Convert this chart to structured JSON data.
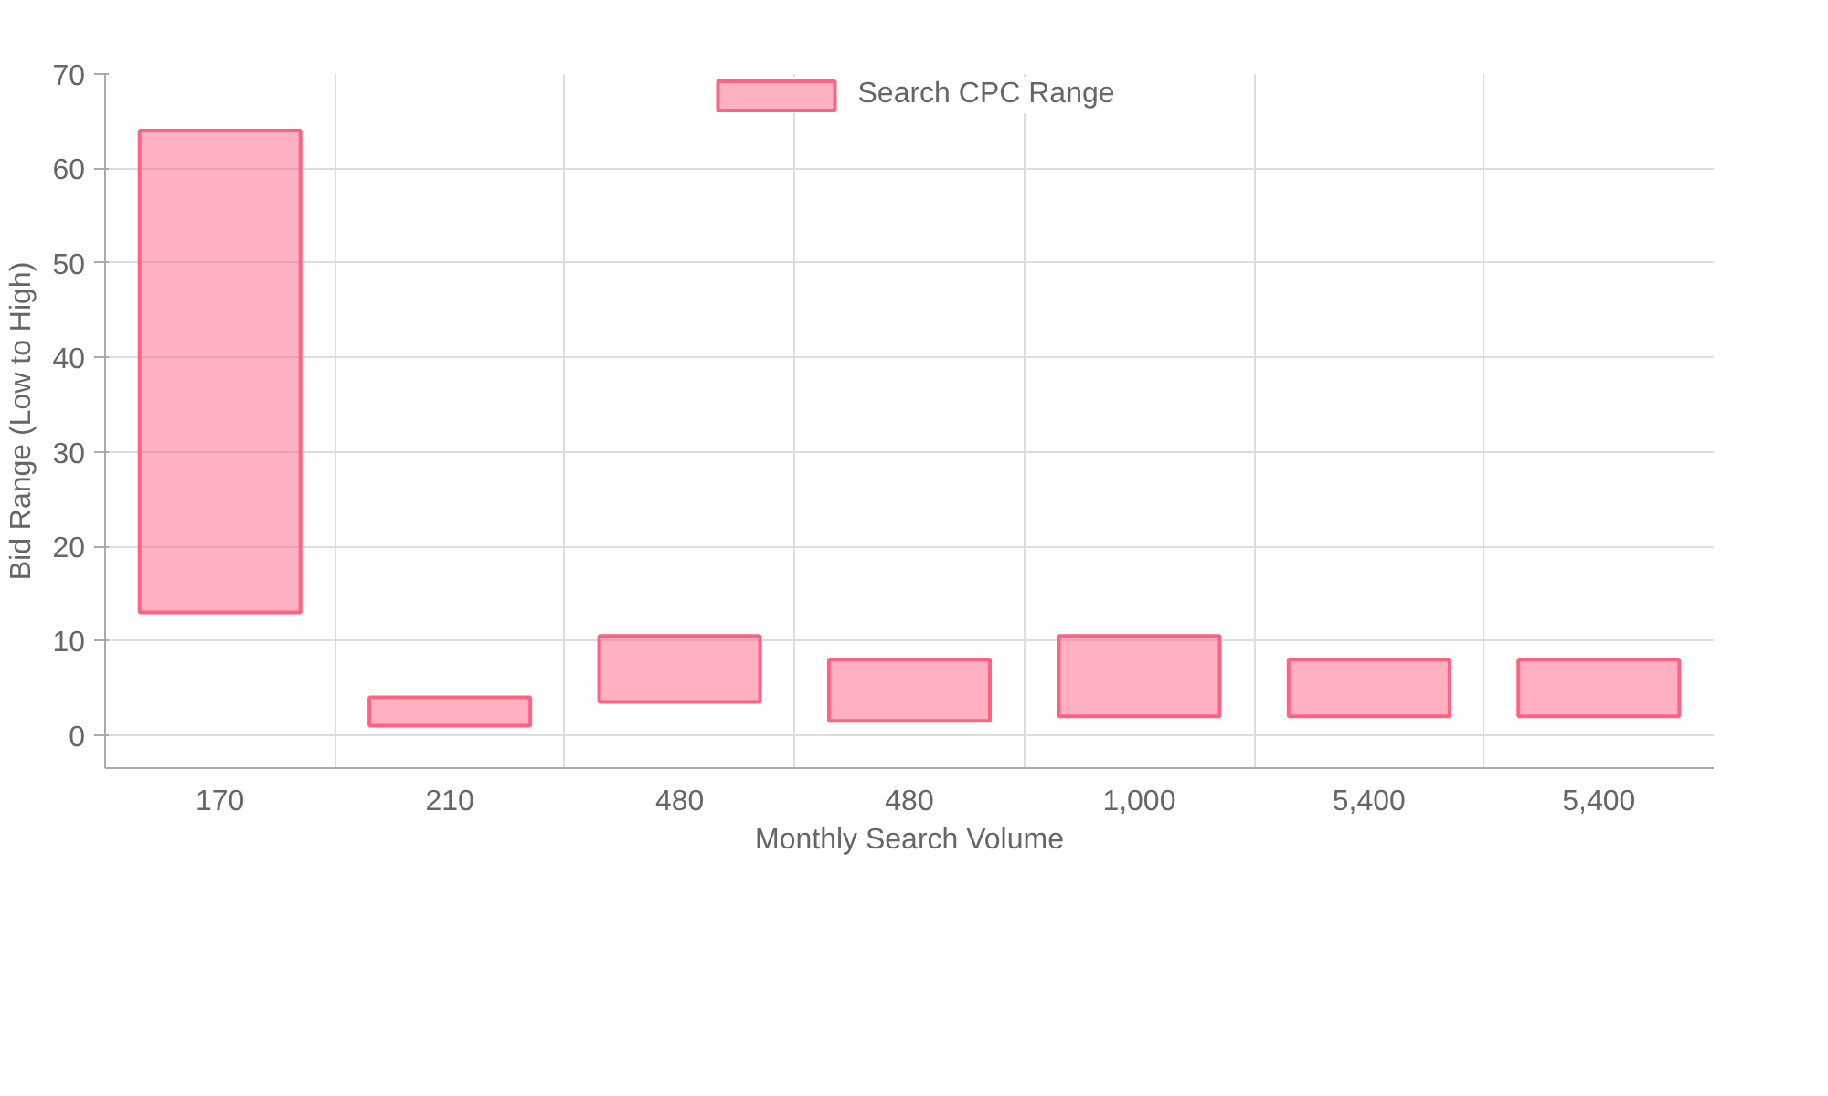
{
  "chart_data": {
    "type": "bar",
    "categories": [
      "170",
      "210",
      "480",
      "480",
      "1,000",
      "5,400",
      "5,400"
    ],
    "series": [
      {
        "name": "Search CPC Range",
        "color": "#ff6384",
        "base": [
          13,
          1,
          3.5,
          1.5,
          2,
          2,
          2
        ],
        "values": [
          51,
          3,
          7,
          6.5,
          8.5,
          6,
          6
        ]
      }
    ],
    "xlabel": "Monthly Search Volume",
    "ylabel": "Bid Range (Low to High)",
    "ylim": [
      -3.5,
      70
    ],
    "yticks": [
      0,
      10,
      20,
      30,
      40,
      50,
      60,
      70
    ],
    "grid": true,
    "legend": "top"
  }
}
